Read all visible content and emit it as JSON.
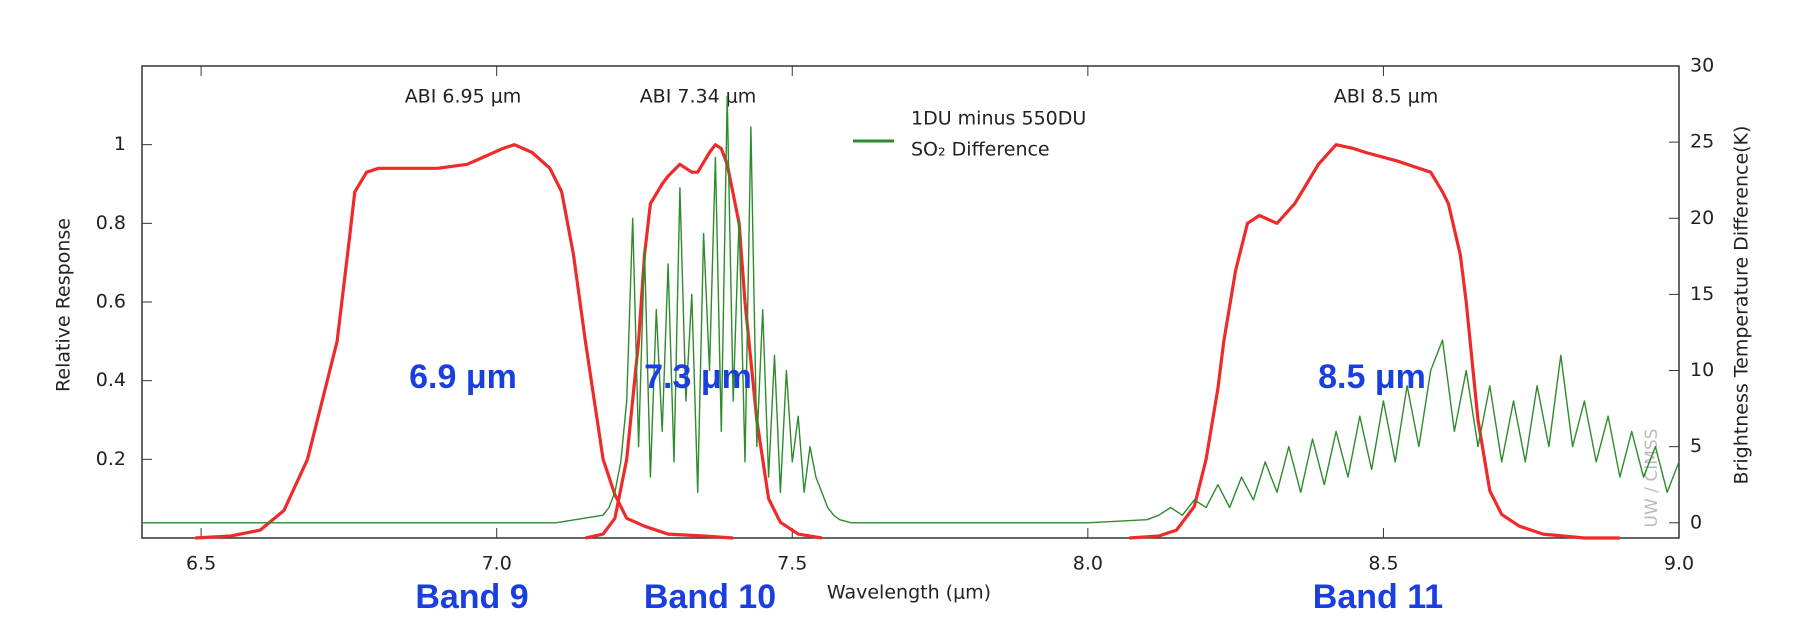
{
  "chart_data": {
    "type": "line",
    "xlabel": "Wavelength (μm)",
    "ylabel": "Relative Response",
    "y2label": "Brightness Temperature Difference(K)",
    "watermark": "UW / CIMSS",
    "xlim": [
      6.4,
      9.0
    ],
    "xticks": [
      6.5,
      {
        "value": 7,
        "label": "7.0"
      },
      7.5,
      {
        "value": 8,
        "label": "8.0"
      },
      8.5,
      {
        "value": 9,
        "label": "9.0"
      }
    ],
    "ylim": [
      0,
      1.2
    ],
    "yticks": [
      0.2,
      0.4,
      0.6,
      0.8,
      1
    ],
    "y2lim": [
      -1,
      30
    ],
    "y2ticks": [
      0,
      5,
      10,
      15,
      20,
      25,
      30
    ],
    "band_centers": [
      "6.9 μm",
      "7.3 μm",
      "8.5 μm"
    ],
    "band_names": [
      "Band 9",
      "Band 10",
      "Band 11"
    ],
    "series": [
      {
        "name": "ABI 6.95 μm",
        "color": "#ee2a2a",
        "x": [
          6.49,
          6.55,
          6.6,
          6.64,
          6.68,
          6.71,
          6.73,
          6.75,
          6.76,
          6.78,
          6.8,
          6.85,
          6.9,
          6.95,
          6.98,
          7.01,
          7.03,
          7.06,
          7.09,
          7.11,
          7.13,
          7.15,
          7.17,
          7.18,
          7.2,
          7.22,
          7.25,
          7.29,
          7.35,
          7.4
        ],
        "values": [
          0,
          0.005,
          0.02,
          0.07,
          0.2,
          0.38,
          0.5,
          0.75,
          0.88,
          0.93,
          0.94,
          0.94,
          0.94,
          0.95,
          0.97,
          0.99,
          1.0,
          0.98,
          0.94,
          0.88,
          0.72,
          0.5,
          0.3,
          0.2,
          0.11,
          0.05,
          0.03,
          0.01,
          0.005,
          0
        ]
      },
      {
        "name": "ABI 7.34 μm",
        "color": "#ee2a2a",
        "x": [
          7.15,
          7.18,
          7.2,
          7.22,
          7.24,
          7.25,
          7.26,
          7.28,
          7.29,
          7.31,
          7.33,
          7.34,
          7.36,
          7.37,
          7.38,
          7.39,
          7.41,
          7.42,
          7.43,
          7.44,
          7.46,
          7.48,
          7.51,
          7.55
        ],
        "values": [
          0,
          0.01,
          0.05,
          0.2,
          0.5,
          0.72,
          0.85,
          0.9,
          0.92,
          0.95,
          0.93,
          0.93,
          0.98,
          1.0,
          0.99,
          0.95,
          0.8,
          0.6,
          0.45,
          0.3,
          0.1,
          0.04,
          0.01,
          0
        ]
      },
      {
        "name": "ABI 8.5 μm",
        "color": "#ee2a2a",
        "x": [
          8.07,
          8.12,
          8.15,
          8.18,
          8.2,
          8.22,
          8.23,
          8.25,
          8.27,
          8.29,
          8.32,
          8.35,
          8.37,
          8.39,
          8.42,
          8.45,
          8.47,
          8.52,
          8.58,
          8.6,
          8.61,
          8.63,
          8.64,
          8.66,
          8.68,
          8.7,
          8.73,
          8.77,
          8.84,
          8.9
        ],
        "values": [
          0,
          0.005,
          0.02,
          0.08,
          0.2,
          0.38,
          0.5,
          0.68,
          0.8,
          0.82,
          0.8,
          0.85,
          0.9,
          0.95,
          1.0,
          0.99,
          0.98,
          0.96,
          0.93,
          0.88,
          0.85,
          0.72,
          0.6,
          0.3,
          0.12,
          0.06,
          0.03,
          0.01,
          0,
          0
        ]
      },
      {
        "name": [
          "1DU minus 550DU",
          "SO₂ Difference"
        ],
        "color": "#2e8b2e",
        "axis": "y2",
        "x": [
          6.4,
          7.1,
          7.18,
          7.19,
          7.2,
          7.21,
          7.22,
          7.23,
          7.24,
          7.25,
          7.26,
          7.27,
          7.28,
          7.29,
          7.3,
          7.31,
          7.32,
          7.33,
          7.34,
          7.35,
          7.36,
          7.37,
          7.38,
          7.39,
          7.4,
          7.41,
          7.42,
          7.43,
          7.44,
          7.45,
          7.46,
          7.47,
          7.48,
          7.49,
          7.5,
          7.51,
          7.52,
          7.53,
          7.54,
          7.55,
          7.56,
          7.57,
          7.58,
          7.6,
          8.0,
          8.1,
          8.12,
          8.14,
          8.16,
          8.18,
          8.2,
          8.22,
          8.24,
          8.26,
          8.28,
          8.3,
          8.32,
          8.34,
          8.36,
          8.38,
          8.4,
          8.42,
          8.44,
          8.46,
          8.48,
          8.5,
          8.52,
          8.54,
          8.56,
          8.58,
          8.6,
          8.62,
          8.64,
          8.66,
          8.68,
          8.7,
          8.72,
          8.74,
          8.76,
          8.78,
          8.8,
          8.82,
          8.84,
          8.86,
          8.88,
          8.9,
          8.92,
          8.94,
          8.96,
          8.98,
          9.0
        ],
        "values": [
          0,
          0,
          0.5,
          1,
          2,
          4,
          8,
          20,
          5,
          18,
          3,
          14,
          6,
          17,
          4,
          22,
          8,
          15,
          2,
          19,
          10,
          24,
          6,
          28,
          8,
          20,
          4,
          26,
          5,
          14,
          3,
          11,
          2,
          10,
          4,
          7,
          2,
          5,
          3,
          2,
          1,
          0.5,
          0.2,
          0,
          0,
          0.2,
          0.5,
          1,
          0.5,
          1.5,
          1,
          2.5,
          1,
          3,
          1.5,
          4,
          2,
          5,
          2,
          5.5,
          2.5,
          6,
          3,
          7,
          3.5,
          8,
          4,
          9,
          5,
          10,
          12,
          6,
          10,
          5,
          9,
          4,
          8,
          4,
          9,
          5,
          11,
          5,
          8,
          4,
          7,
          3,
          6,
          3,
          5,
          2,
          4
        ]
      }
    ]
  }
}
